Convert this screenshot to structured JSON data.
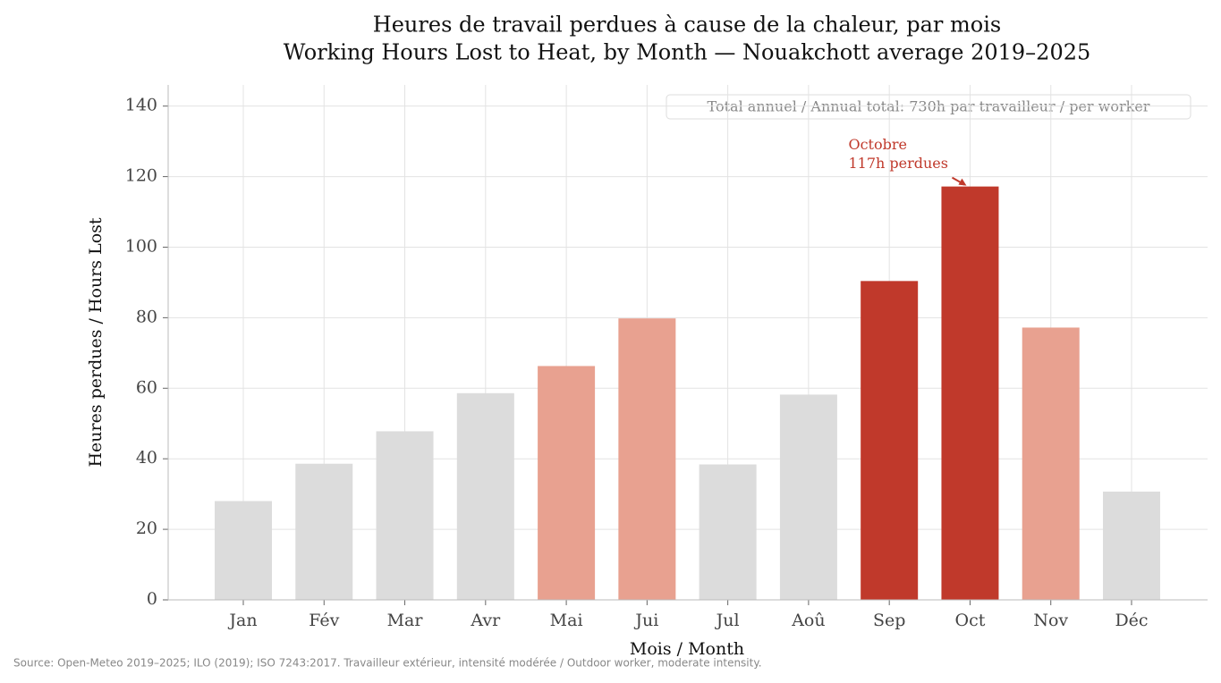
{
  "chart_data": {
    "type": "bar",
    "title": [
      "Heures de travail perdues à cause de la chaleur, par mois",
      "Working Hours Lost to Heat, by Month — Nouakchott average 2019–2025"
    ],
    "x_label": "Mois / Month",
    "y_label": "Heures perdues / Hours Lost",
    "categories": [
      "Jan",
      "Fév",
      "Mar",
      "Avr",
      "Mai",
      "Jui",
      "Jul",
      "Aoû",
      "Sep",
      "Oct",
      "Nov",
      "Déc"
    ],
    "values": [
      28,
      38.6,
      47.8,
      58.6,
      66.3,
      79.8,
      38.4,
      58.2,
      90.4,
      117.2,
      77.2,
      30.7
    ],
    "colors": [
      "#dcdcdc",
      "#dcdcdc",
      "#dcdcdc",
      "#dcdcdc",
      "#e8a190",
      "#e8a190",
      "#dcdcdc",
      "#dcdcdc",
      "#c0392b",
      "#c0392b",
      "#e8a190",
      "#dcdcdc"
    ],
    "ylim": [
      0,
      146
    ],
    "yticks": [
      0,
      20,
      40,
      60,
      80,
      100,
      120,
      140
    ],
    "grid": true,
    "annotation": {
      "lines": [
        "Octobre",
        "117h perdues"
      ],
      "category_index": 9,
      "color": "#c0392b"
    },
    "total_box": "Total annuel / Annual total: 730h par travailleur / per worker",
    "source": "Source: Open-Meteo 2019–2025; ILO (2019); ISO 7243:2017. Travailleur extérieur, intensité modérée / Outdoor worker, moderate intensity."
  }
}
